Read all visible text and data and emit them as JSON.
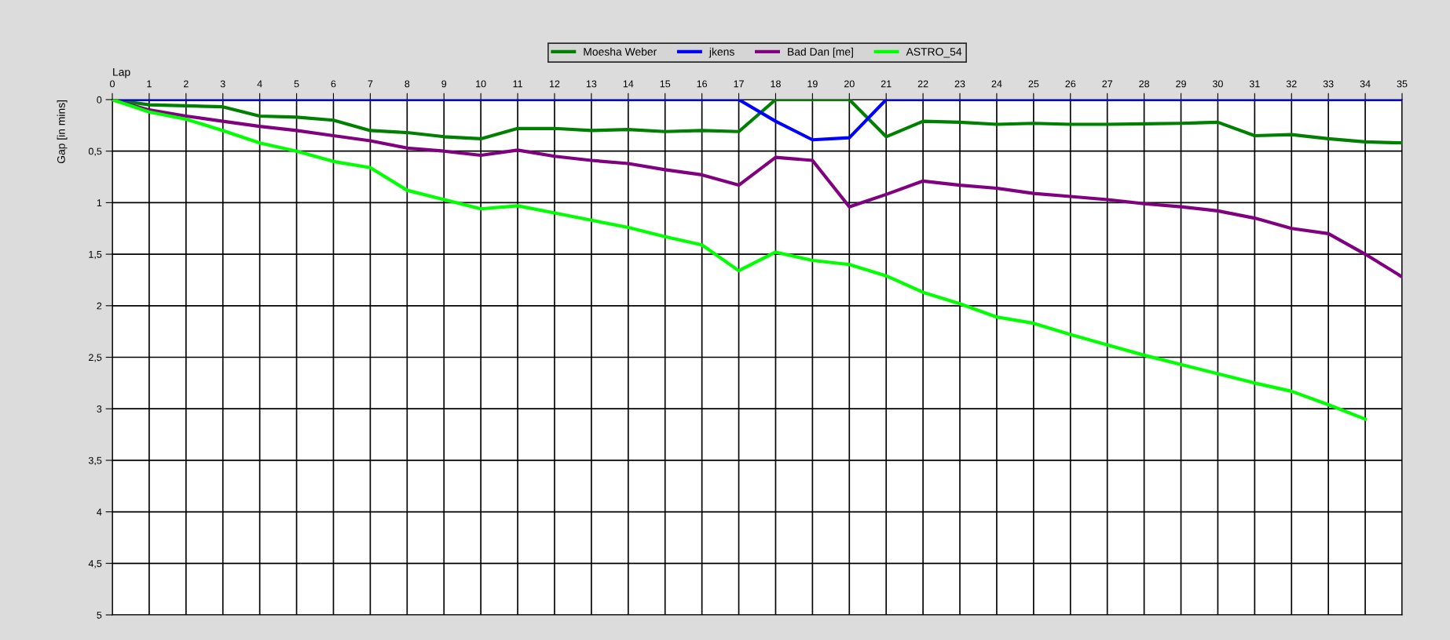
{
  "chart_data": {
    "type": "line",
    "xlabel": "Lap",
    "ylabel": "Gap [in mins]",
    "x": [
      0,
      1,
      2,
      3,
      4,
      5,
      6,
      7,
      8,
      9,
      10,
      11,
      12,
      13,
      14,
      15,
      16,
      17,
      18,
      19,
      20,
      21,
      22,
      23,
      24,
      25,
      26,
      27,
      28,
      29,
      30,
      31,
      32,
      33,
      34,
      35
    ],
    "series": [
      {
        "name": "Moesha Weber",
        "color": "#008000",
        "values": [
          0,
          0.05,
          0.06,
          0.07,
          0.16,
          0.17,
          0.2,
          0.3,
          0.32,
          0.36,
          0.38,
          0.28,
          0.28,
          0.3,
          0.29,
          0.31,
          0.3,
          0.31,
          0,
          0,
          0,
          0.36,
          0.21,
          0.22,
          0.24,
          0.23,
          0.24,
          0.24,
          0.235,
          0.23,
          0.22,
          0.35,
          0.34,
          0.38,
          0.41,
          0.42
        ]
      },
      {
        "name": "jkens",
        "color": "#0000ff",
        "values": [
          0,
          0,
          0,
          0,
          0,
          0,
          0,
          0,
          0,
          0,
          0,
          0,
          0,
          0,
          0,
          0,
          0,
          0,
          0.21,
          0.39,
          0.37,
          0,
          0,
          0,
          0,
          0,
          0,
          0,
          0,
          0,
          0,
          0,
          0,
          0,
          0,
          0
        ]
      },
      {
        "name": "Bad Dan [me]",
        "color": "#800080",
        "values": [
          0,
          0.1,
          0.16,
          0.21,
          0.26,
          0.3,
          0.35,
          0.4,
          0.47,
          0.5,
          0.54,
          0.49,
          0.55,
          0.59,
          0.62,
          0.68,
          0.73,
          0.83,
          0.56,
          0.59,
          1.04,
          0.92,
          0.79,
          0.83,
          0.86,
          0.91,
          0.94,
          0.97,
          1.01,
          1.04,
          1.08,
          1.15,
          1.25,
          1.3,
          1.5,
          1.72
        ]
      },
      {
        "name": "ASTRO_54",
        "color": "#00ff00",
        "values": [
          0,
          0.12,
          0.19,
          0.3,
          0.42,
          0.5,
          0.6,
          0.66,
          0.88,
          0.97,
          1.06,
          1.03,
          1.1,
          1.17,
          1.24,
          1.33,
          1.41,
          1.66,
          1.48,
          1.56,
          1.6,
          1.71,
          1.87,
          1.98,
          2.11,
          2.17,
          2.28,
          2.38,
          2.48,
          2.57,
          2.66,
          2.75,
          2.83,
          2.96,
          3.1,
          null
        ]
      }
    ],
    "xlim": [
      0,
      35
    ],
    "xticks": [
      0,
      1,
      2,
      3,
      4,
      5,
      6,
      7,
      8,
      9,
      10,
      11,
      12,
      13,
      14,
      15,
      16,
      17,
      18,
      19,
      20,
      21,
      22,
      23,
      24,
      25,
      26,
      27,
      28,
      29,
      30,
      31,
      32,
      33,
      34,
      35
    ],
    "ylim": [
      5,
      0
    ],
    "yticks": [
      0,
      {
        "value": 0.5,
        "label": "0,5"
      },
      1,
      {
        "value": 1.5,
        "label": "1,5"
      },
      2,
      {
        "value": 2.5,
        "label": "2,5"
      },
      3,
      {
        "value": 3.5,
        "label": "3,5"
      },
      4,
      {
        "value": 4.5,
        "label": "4,5"
      },
      5
    ],
    "grid": true,
    "legend": "top",
    "marker": "none",
    "line_style": "solid"
  }
}
